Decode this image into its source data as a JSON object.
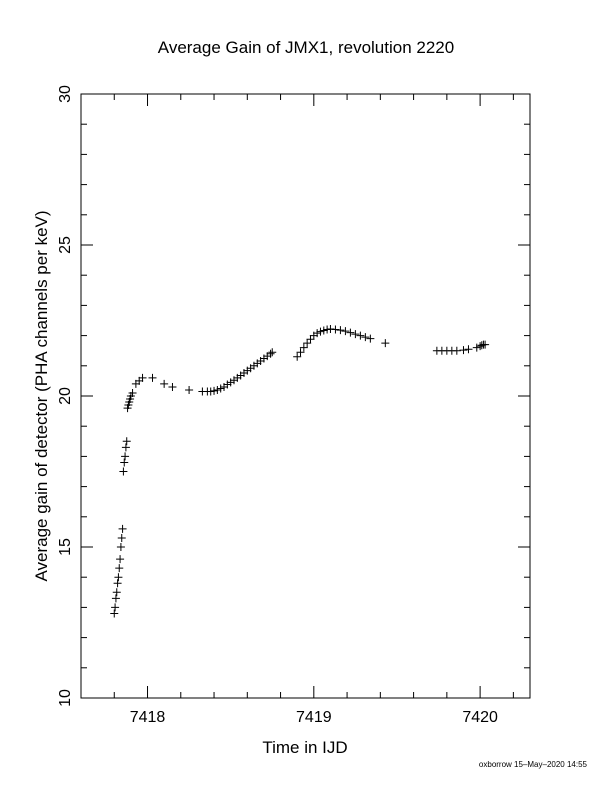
{
  "chart_data": {
    "type": "scatter",
    "title": "Average Gain of JMX1, revolution 2220",
    "xlabel": "Time in IJD",
    "ylabel": "Average gain of detector (PHA channels per keV)",
    "xlim": [
      7417.6,
      7420.3
    ],
    "ylim": [
      10,
      30
    ],
    "x_ticks": [
      7418,
      7419,
      7420
    ],
    "y_ticks": [
      10,
      15,
      20,
      25,
      30
    ],
    "x_minor_step": 0.2,
    "y_minor_step": 1,
    "grid": false,
    "marker": "plus",
    "series": [
      {
        "x": [
          7417.8,
          7417.805,
          7417.81,
          7417.815,
          7417.82,
          7417.825,
          7417.83,
          7417.835,
          7417.84,
          7417.845,
          7417.85,
          7417.855,
          7417.86,
          7417.865,
          7417.87,
          7417.875,
          7417.88,
          7417.885,
          7417.89,
          7417.895,
          7417.9,
          7417.91,
          7417.93,
          7417.95,
          7417.97,
          7418.03,
          7418.1,
          7418.15,
          7418.25,
          7418.33,
          7418.36,
          7418.38,
          7418.4,
          7418.42,
          7418.44,
          7418.46,
          7418.48,
          7418.5,
          7418.52,
          7418.54,
          7418.56,
          7418.58,
          7418.6,
          7418.62,
          7418.64,
          7418.66,
          7418.68,
          7418.7,
          7418.72,
          7418.74,
          7418.75,
          7418.9,
          7418.92,
          7418.94,
          7418.96,
          7418.98,
          7419.0,
          7419.02,
          7419.04,
          7419.06,
          7419.08,
          7419.1,
          7419.13,
          7419.16,
          7419.19,
          7419.22,
          7419.25,
          7419.28,
          7419.31,
          7419.34,
          7419.43,
          7419.74,
          7419.77,
          7419.8,
          7419.83,
          7419.86,
          7419.9,
          7419.93,
          7419.98,
          7420.0,
          7420.01,
          7420.02,
          7420.03
        ],
        "y": [
          12.8,
          13.0,
          13.3,
          13.5,
          13.8,
          14.0,
          14.3,
          14.6,
          15.0,
          15.3,
          15.6,
          17.5,
          17.8,
          18.0,
          18.3,
          18.5,
          19.6,
          19.7,
          19.8,
          19.9,
          20.0,
          20.1,
          20.4,
          20.5,
          20.6,
          20.6,
          20.4,
          20.3,
          20.2,
          20.15,
          20.15,
          20.15,
          20.17,
          20.2,
          20.25,
          20.3,
          20.38,
          20.45,
          20.52,
          20.6,
          20.68,
          20.76,
          20.84,
          20.92,
          21.0,
          21.08,
          21.16,
          21.24,
          21.32,
          21.4,
          21.45,
          21.3,
          21.45,
          21.6,
          21.75,
          21.88,
          22.0,
          22.08,
          22.13,
          22.17,
          22.2,
          22.22,
          22.2,
          22.18,
          22.15,
          22.1,
          22.05,
          22.0,
          21.95,
          21.9,
          21.75,
          21.5,
          21.5,
          21.5,
          21.5,
          21.5,
          21.52,
          21.55,
          21.6,
          21.65,
          21.68,
          21.7,
          21.7
        ]
      }
    ]
  },
  "footer": {
    "text": "oxborrow 15–May–2020 14:55"
  }
}
